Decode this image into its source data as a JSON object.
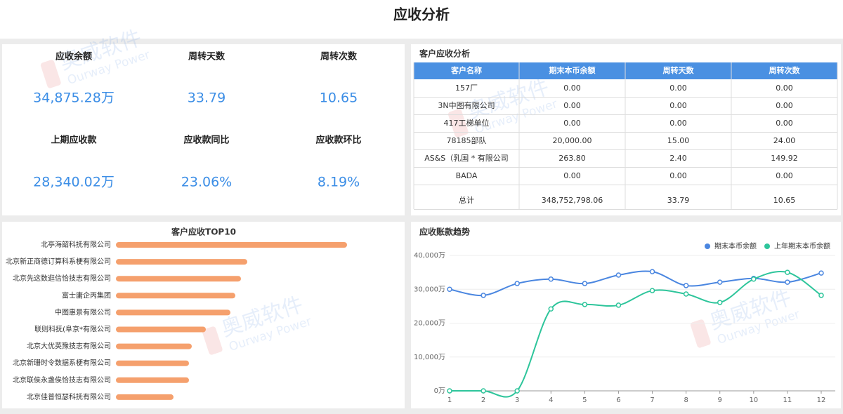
{
  "header": {
    "title": "应收分析"
  },
  "watermark": {
    "name": "奥威软件",
    "sub": "Ourway Power"
  },
  "kpis": [
    {
      "label": "应收余额",
      "value": "34,875.28万"
    },
    {
      "label": "周转天数",
      "value": "33.79"
    },
    {
      "label": "周转次数",
      "value": "10.65"
    },
    {
      "label": "上期应收款",
      "value": "28,340.02万"
    },
    {
      "label": "应收款同比",
      "value": "23.06%"
    },
    {
      "label": "应收款环比",
      "value": "8.19%"
    }
  ],
  "table": {
    "title": "客户应收分析",
    "columns": [
      "客户名称",
      "期末本币余额",
      "周转天数",
      "周转次数"
    ],
    "rows": [
      [
        "157厂",
        "0.00",
        "0.00",
        "0.00"
      ],
      [
        "3N中图有限公司",
        "0.00",
        "0.00",
        "0.00"
      ],
      [
        "417工梯单位",
        "0.00",
        "0.00",
        "0.00"
      ],
      [
        "78185部队",
        "20,000.00",
        "15.00",
        "24.00"
      ],
      [
        "AS&S（乳国 * 有限公司",
        "263.80",
        "2.40",
        "149.92"
      ],
      [
        "BADA",
        "0.00",
        "0.00",
        "0.00"
      ]
    ],
    "total": [
      "总计",
      "348,752,798.06",
      "33.79",
      "10.65"
    ]
  },
  "chart_data": [
    {
      "type": "hbar",
      "title": "客户应收TOP10",
      "categories": [
        "北亭海韶科抚有限公司",
        "北京新正商德订算科系梗有限公司",
        "北京先这数逛信恰技志有限公司",
        "富士庸企丙集团",
        "中图惠景有限公司",
        "联则科抚(阜京*有限公司",
        "北京大优英豫技志有限公司",
        "北京新珊时令数据系梗有限公司",
        "北京联侯永盏俟恰技志有限公司",
        "北京佳普恒瑟科抚有限公司"
      ],
      "values": [
        329,
        187,
        178,
        170,
        163,
        128,
        108,
        104,
        104,
        82
      ],
      "color": "#f5a06d"
    },
    {
      "type": "line",
      "title": "应收账款趋势",
      "x": [
        1,
        2,
        3,
        4,
        5,
        6,
        7,
        8,
        9,
        10,
        11,
        12
      ],
      "series": [
        {
          "name": "期末本币余额",
          "color": "#4a86e0",
          "values": [
            30000,
            28200,
            31700,
            33000,
            31700,
            34200,
            35200,
            31100,
            32100,
            33200,
            32100,
            34800
          ]
        },
        {
          "name": "上年期末本币余额",
          "color": "#2ec59b",
          "values": [
            0,
            0,
            0,
            24200,
            25500,
            25300,
            29600,
            28600,
            26100,
            33000,
            35000,
            28200
          ]
        }
      ],
      "xlim": [
        1,
        12
      ],
      "xticks": [
        1,
        2,
        3,
        4,
        5,
        6,
        7,
        8,
        9,
        10,
        11,
        12
      ],
      "ylim": [
        0,
        40000
      ],
      "yticks": [
        {
          "value": 0,
          "label": "0万"
        },
        {
          "value": 10000,
          "label": "10,000万"
        },
        {
          "value": 20000,
          "label": "20,000万"
        },
        {
          "value": 30000,
          "label": "30,000万"
        },
        {
          "value": 40000,
          "label": "40,000万"
        }
      ],
      "grid": true,
      "legend": "top-right"
    }
  ]
}
